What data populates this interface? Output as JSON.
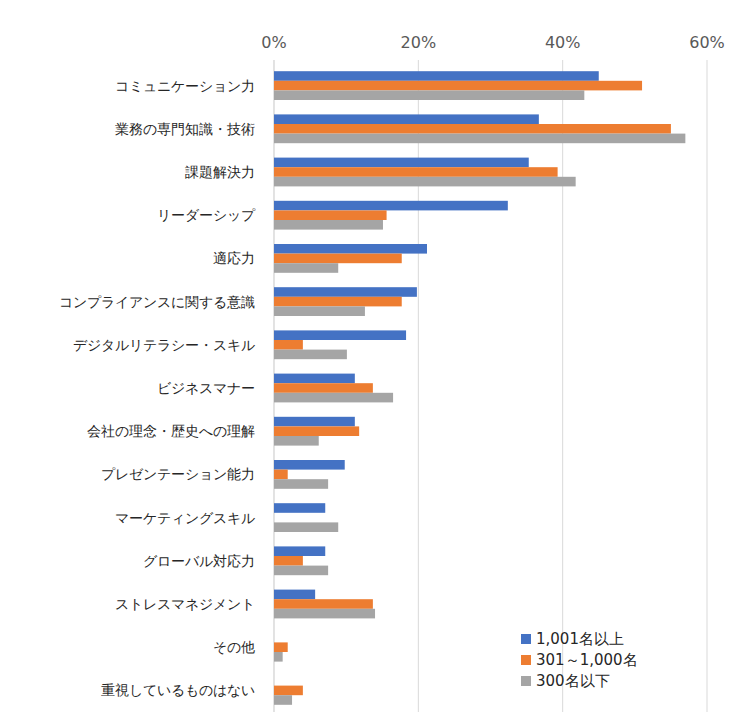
{
  "chart_data": {
    "type": "bar",
    "orientation": "horizontal",
    "categories": [
      "コミュニケーション力",
      "業務の専門知識・技術",
      "課題解決力",
      "リーダーシップ",
      "適応力",
      "コンプライアンスに関する意識",
      "デジタルリテラシー・スキル",
      "ビジネスマナー",
      "会社の理念・歴史への理解",
      "プレゼンテーション能力",
      "マーケティングスキル",
      "グローバル対応力",
      "ストレスマネジメント",
      "その他",
      "重視しているものはない"
    ],
    "series": [
      {
        "name": "1,001名以上",
        "color": "#4472c4",
        "values": [
          45.0,
          36.7,
          35.3,
          32.4,
          21.2,
          19.8,
          18.3,
          11.2,
          11.2,
          9.8,
          7.1,
          7.1,
          5.7,
          0,
          0
        ]
      },
      {
        "name": "301～1,000名",
        "color": "#ed7d31",
        "values": [
          51.0,
          55.0,
          39.3,
          15.6,
          17.7,
          17.7,
          4.0,
          13.7,
          11.8,
          1.9,
          0,
          4.0,
          13.7,
          1.9,
          4.0
        ]
      },
      {
        "name": "300名以下",
        "color": "#a5a5a5",
        "values": [
          43.0,
          57.0,
          41.8,
          15.1,
          8.9,
          12.6,
          10.1,
          16.5,
          6.2,
          7.5,
          8.9,
          7.5,
          14.0,
          1.2,
          2.5
        ]
      }
    ],
    "xlim": [
      0,
      60
    ],
    "xticks": [
      {
        "value": 0,
        "label": "0%"
      },
      {
        "value": 20,
        "label": "20%"
      },
      {
        "value": 40,
        "label": "40%"
      },
      {
        "value": 60,
        "label": "60%"
      }
    ],
    "grid": true,
    "legend": "lower right"
  }
}
